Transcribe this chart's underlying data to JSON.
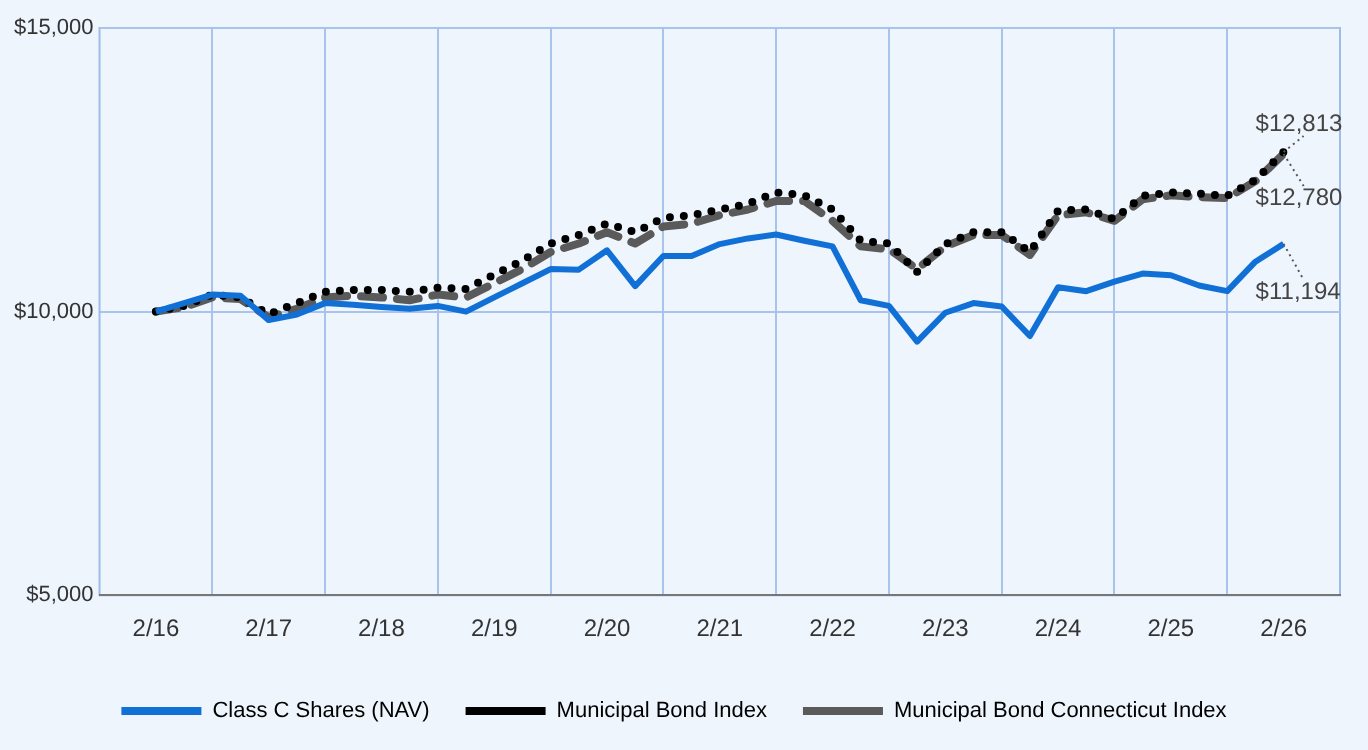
{
  "chart_data": {
    "type": "line",
    "x": [
      "2016-02",
      "2016-05",
      "2016-08",
      "2016-11",
      "2017-02",
      "2017-05",
      "2017-08",
      "2017-11",
      "2018-02",
      "2018-05",
      "2018-08",
      "2018-11",
      "2019-02",
      "2019-05",
      "2019-08",
      "2019-11",
      "2020-02",
      "2020-05",
      "2020-08",
      "2020-11",
      "2021-02",
      "2021-05",
      "2021-08",
      "2021-11",
      "2022-02",
      "2022-05",
      "2022-08",
      "2022-11",
      "2023-02",
      "2023-05",
      "2023-08",
      "2023-11",
      "2024-02",
      "2024-05",
      "2024-08",
      "2024-11",
      "2025-02",
      "2025-05",
      "2025-08",
      "2025-11",
      "2026-02"
    ],
    "series": [
      {
        "name": "Class C Shares (NAV)",
        "color": "#1170d6",
        "line_style": "solid",
        "values": [
          10000,
          10150,
          10300,
          10280,
          9850,
          9950,
          10150,
          10120,
          10080,
          10050,
          10100,
          10000,
          10250,
          10500,
          10750,
          10740,
          11080,
          10450,
          10980,
          10980,
          11190,
          11290,
          11360,
          11250,
          11150,
          10200,
          10100,
          9470,
          9980,
          10150,
          10090,
          9570,
          10430,
          10360,
          10530,
          10670,
          10640,
          10460,
          10360,
          10880,
          11194
        ]
      },
      {
        "name": "Municipal Bond Index",
        "color": "#000000",
        "line_style": "dotted",
        "values": [
          10000,
          10100,
          10300,
          10250,
          9950,
          10150,
          10350,
          10380,
          10380,
          10350,
          10420,
          10400,
          10650,
          10900,
          11200,
          11350,
          11550,
          11400,
          11650,
          11700,
          11800,
          11900,
          12100,
          12050,
          11800,
          11250,
          11200,
          10700,
          11190,
          11400,
          11400,
          11050,
          11780,
          11800,
          11630,
          12040,
          12100,
          12080,
          12040,
          12320,
          12813
        ]
      },
      {
        "name": "Municipal Bond Connecticut Index",
        "color": "#5a5a5a",
        "line_style": "dashed",
        "values": [
          10000,
          10080,
          10250,
          10220,
          9900,
          10050,
          10250,
          10280,
          10250,
          10200,
          10300,
          10250,
          10500,
          10750,
          11050,
          11200,
          11400,
          11200,
          11500,
          11550,
          11700,
          11800,
          11950,
          11950,
          11600,
          11150,
          11100,
          10750,
          11150,
          11350,
          11350,
          11000,
          11700,
          11750,
          11600,
          11980,
          12050,
          12020,
          12000,
          12300,
          12780
        ]
      }
    ],
    "xlim": [
      "2015-08",
      "2026-08"
    ],
    "xticks": [
      {
        "value": "2016-02",
        "label": "2/16"
      },
      {
        "value": "2016-08",
        "label": null
      },
      {
        "value": "2017-02",
        "label": "2/17"
      },
      {
        "value": "2017-08",
        "label": null
      },
      {
        "value": "2018-02",
        "label": "2/18"
      },
      {
        "value": "2018-08",
        "label": null
      },
      {
        "value": "2019-02",
        "label": "2/19"
      },
      {
        "value": "2019-08",
        "label": null
      },
      {
        "value": "2020-02",
        "label": "2/20"
      },
      {
        "value": "2020-08",
        "label": null
      },
      {
        "value": "2021-02",
        "label": "2/21"
      },
      {
        "value": "2021-08",
        "label": null
      },
      {
        "value": "2022-02",
        "label": "2/22"
      },
      {
        "value": "2022-08",
        "label": null
      },
      {
        "value": "2023-02",
        "label": "2/23"
      },
      {
        "value": "2023-08",
        "label": null
      },
      {
        "value": "2024-02",
        "label": "2/24"
      },
      {
        "value": "2024-08",
        "label": null
      },
      {
        "value": "2025-02",
        "label": "2/25"
      },
      {
        "value": "2025-08",
        "label": null
      },
      {
        "value": "2026-02",
        "label": "2/26"
      }
    ],
    "ylim": [
      5000,
      15000
    ],
    "yticks": [
      {
        "value": 5000,
        "label": "$5,000"
      },
      {
        "value": 10000,
        "label": "$10,000"
      },
      {
        "value": 15000,
        "label": "$15,000"
      }
    ],
    "grid": true,
    "legend": "bottom",
    "marker": "none",
    "annotations": [
      {
        "text": "$12,813",
        "x": "2026-02",
        "y": 12813
      },
      {
        "text": "$12,780",
        "x": "2026-02",
        "y": 12780
      },
      {
        "text": "$11,194",
        "x": "2026-02",
        "y": 11194
      }
    ]
  }
}
